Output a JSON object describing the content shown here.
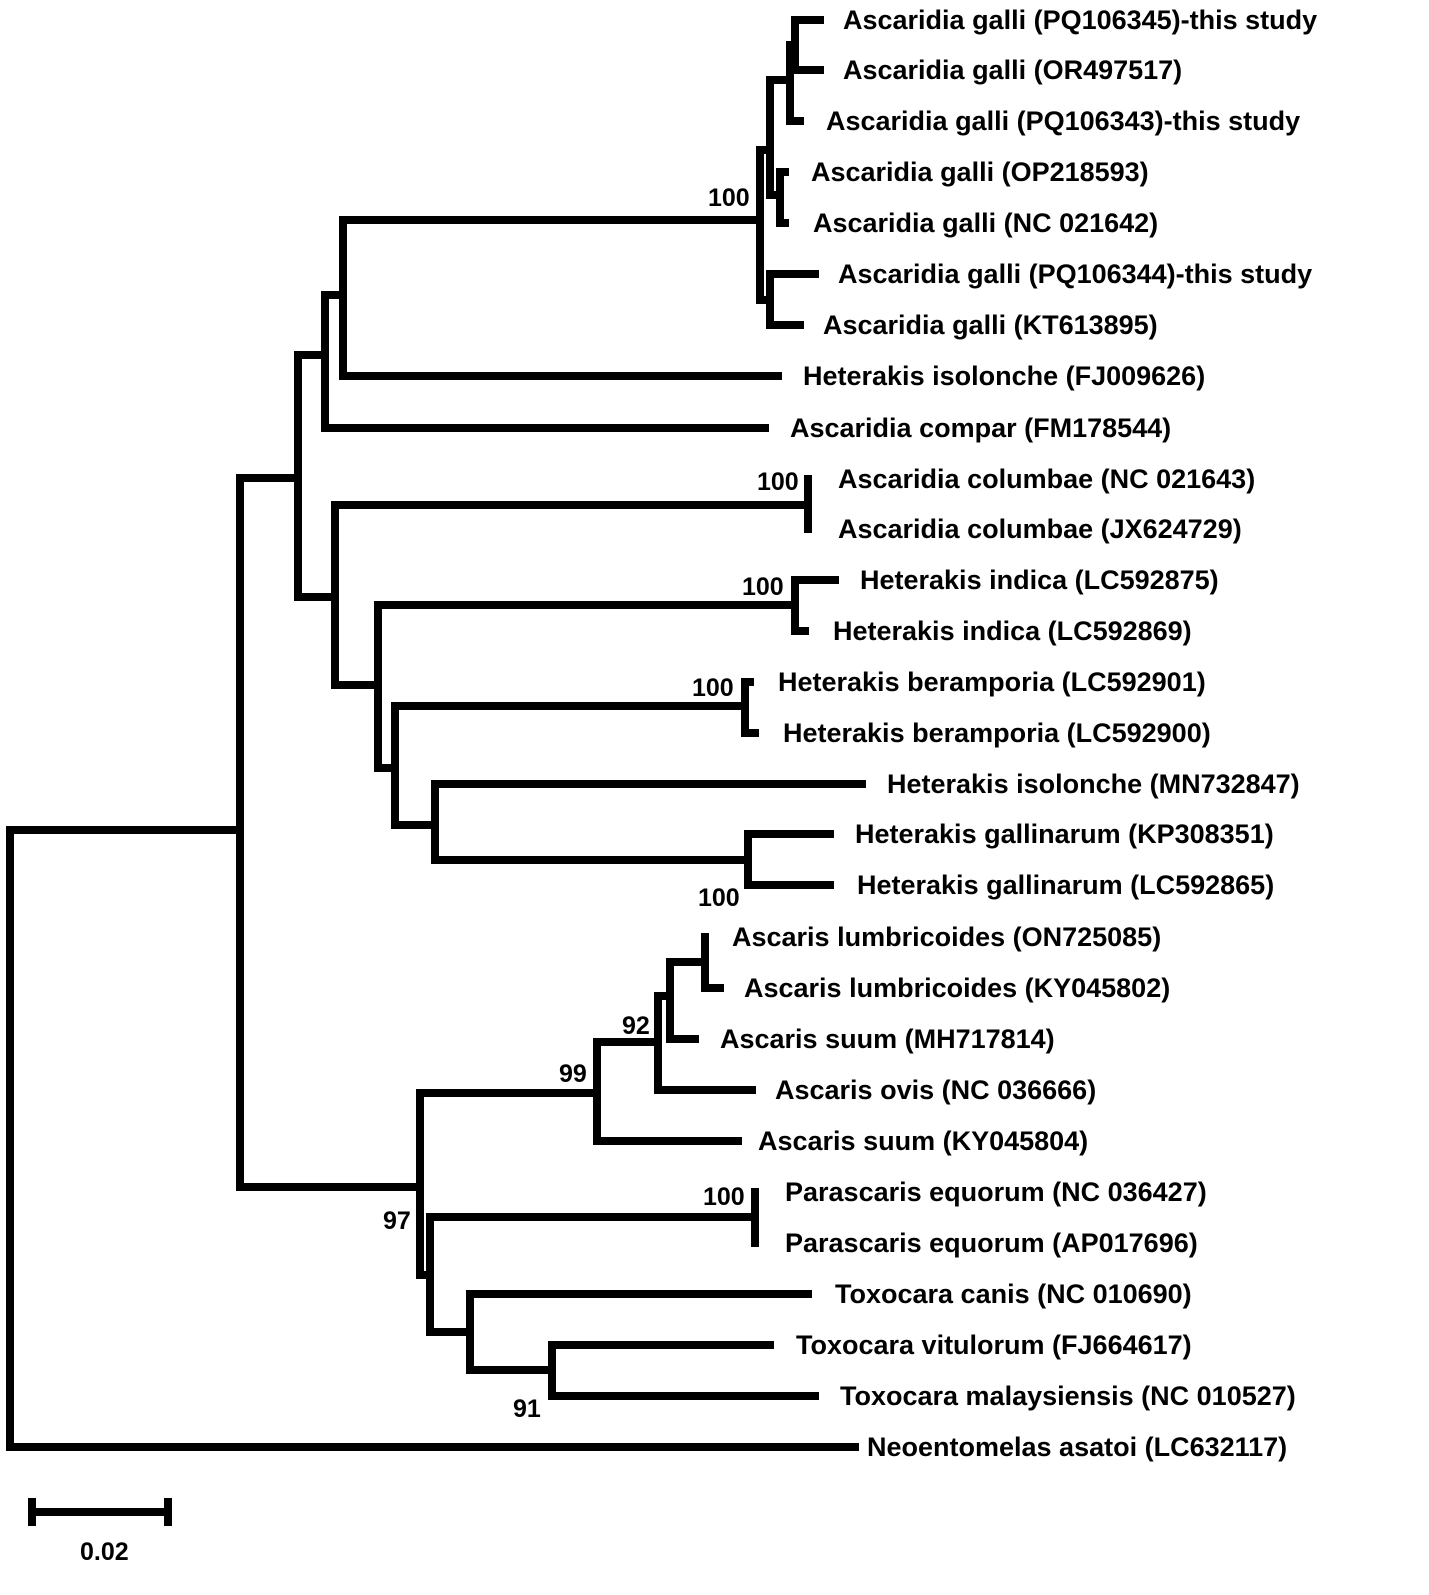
{
  "taxa": [
    "Ascaridia galli (PQ106345)-this study",
    "Ascaridia galli (OR497517)",
    "Ascaridia galli (PQ106343)-this study",
    "Ascaridia galli (OP218593)",
    "Ascaridia galli (NC 021642)",
    "Ascaridia galli (PQ106344)-this study",
    "Ascaridia galli (KT613895)",
    "Heterakis isolonche (FJ009626)",
    "Ascaridia compar (FM178544)",
    "Ascaridia columbae (NC 021643)",
    "Ascaridia columbae (JX624729)",
    "Heterakis indica (LC592875)",
    "Heterakis indica (LC592869)",
    "Heterakis beramporia (LC592901)",
    "Heterakis beramporia (LC592900)",
    "Heterakis isolonche (MN732847)",
    "Heterakis gallinarum (KP308351)",
    "Heterakis gallinarum (LC592865)",
    "Ascaris lumbricoides (ON725085)",
    "Ascaris lumbricoides (KY045802)",
    "Ascaris suum (MH717814)",
    "Ascaris ovis (NC 036666)",
    "Ascaris suum (KY045804)",
    "Parascaris equorum (NC 036427)",
    "Parascaris equorum (AP017696)",
    "Toxocara canis (NC 010690)",
    "Toxocara vitulorum (FJ664617)",
    "Toxocara malaysiensis (NC 010527)",
    "Neoentomelas asatoi (LC632117)"
  ],
  "bootstrap": {
    "galli": "100",
    "columbae": "100",
    "indica": "100",
    "beramporia": "100",
    "gallinarum": "100",
    "ascaris": "99",
    "ascaris_inner": "92",
    "ascarididae": "97",
    "parascaris": "100",
    "toxocara": "91"
  },
  "scale_bar": {
    "label": "0.02",
    "value": 0.02
  }
}
